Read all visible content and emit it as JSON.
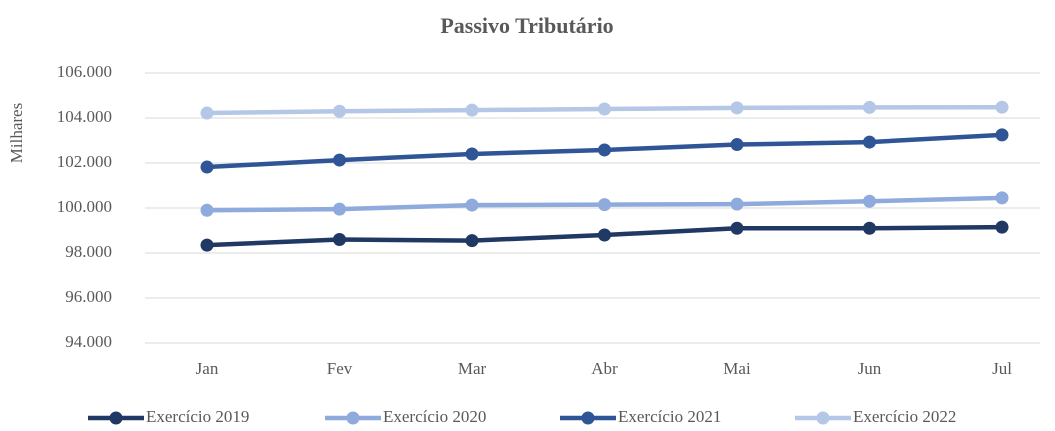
{
  "chart_data": {
    "type": "line",
    "title": "Passivo Tributário",
    "y_label": "Milhares",
    "categories": [
      "Jan",
      "Fev",
      "Mar",
      "Abr",
      "Mai",
      "Jun",
      "Jul"
    ],
    "series": [
      {
        "name": "Exercício 2019",
        "color": "#203864",
        "values": [
          98350,
          98600,
          98550,
          98800,
          99100,
          99100,
          99150
        ]
      },
      {
        "name": "Exercício 2020",
        "color": "#8faadc",
        "values": [
          99900,
          99950,
          100130,
          100150,
          100170,
          100300,
          100450
        ]
      },
      {
        "name": "Exercício 2021",
        "color": "#2f5597",
        "values": [
          101820,
          102130,
          102400,
          102580,
          102820,
          102930,
          103250
        ]
      },
      {
        "name": "Exercício 2022",
        "color": "#b4c7e7",
        "values": [
          104220,
          104300,
          104350,
          104400,
          104450,
          104470,
          104480
        ]
      }
    ],
    "ylim": [
      94000,
      106000
    ],
    "yticks": [
      {
        "value": 94000,
        "label": "94.000"
      },
      {
        "value": 96000,
        "label": "96.000"
      },
      {
        "value": 98000,
        "label": "98.000"
      },
      {
        "value": 100000,
        "label": "100.000"
      },
      {
        "value": 102000,
        "label": "102.000"
      },
      {
        "value": 104000,
        "label": "104.000"
      },
      {
        "value": 106000,
        "label": "106.000"
      }
    ],
    "grid": true,
    "legend": "bottom"
  }
}
